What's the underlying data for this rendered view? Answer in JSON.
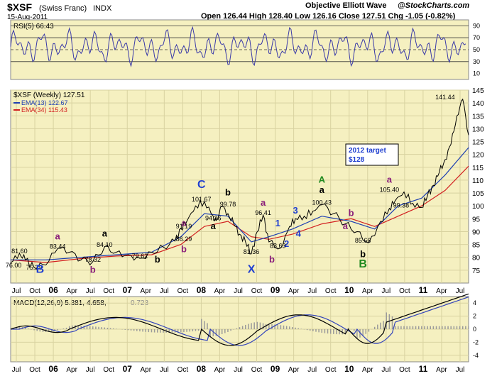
{
  "header": {
    "symbol": "$XSF",
    "name": "(Swiss Franc)",
    "index": "INDX",
    "date": "15-Aug-2011",
    "annotator": "Objective Elliott Wave",
    "source": "@StockCharts.com",
    "quote": "Open 126.44  High 128.40  Low 126.16  Close 127.51  Chg -1.05 (-0.82%)"
  },
  "colors": {
    "panel_bg": "#f5f0c0",
    "price": "#000000",
    "ema13": "#1e3fb2",
    "ema34": "#d22020",
    "rsi": "#3a3aa8",
    "macd": "#000000",
    "macd_signal": "#3344bb",
    "histogram": "#9a9a9a",
    "wave_blue": "#1f3fd0",
    "wave_purple": "#8a1f7a",
    "wave_green": "#1f8a1f",
    "target_text": "#1f3fd0"
  },
  "rsi_panel": {
    "label": "RSI(5) 66.43",
    "levels": [
      30,
      50,
      70,
      90
    ],
    "ticks": [
      "10",
      "30",
      "50",
      "70",
      "90"
    ]
  },
  "price_panel": {
    "legend_main": "$XSF (Weekly) 127.51",
    "legend_ema13": "EMA(13) 122.67",
    "legend_ema34": "EMA(34) 115.43",
    "ticks": [
      "75",
      "80",
      "85",
      "90",
      "95",
      "100",
      "105",
      "110",
      "115",
      "120",
      "125",
      "130",
      "135",
      "140",
      "145"
    ],
    "target_box": [
      "2012 target",
      "$128"
    ]
  },
  "macd_panel": {
    "label_main": "MACD(12,26,9) 5.381, 4.658,",
    "label_hist": "0.723",
    "ticks": [
      "-4",
      "-2",
      "0",
      "2",
      "4"
    ]
  },
  "x_axis": {
    "labels": [
      "Jul",
      "Oct",
      "06",
      "Apr",
      "Jul",
      "Oct",
      "07",
      "Apr",
      "Jul",
      "Oct",
      "08",
      "Apr",
      "Jul",
      "Oct",
      "09",
      "Apr",
      "Jul",
      "Oct",
      "10",
      "Apr",
      "Jul",
      "Oct",
      "11",
      "Apr",
      "Jul"
    ]
  },
  "chart_data": {
    "type": "line",
    "title": "$XSF (Swiss Franc) INDX",
    "x_axis_labels": [
      "Jul",
      "Oct",
      "06",
      "Apr",
      "Jul",
      "Oct",
      "07",
      "Apr",
      "Jul",
      "Oct",
      "08",
      "Apr",
      "Jul",
      "Oct",
      "09",
      "Apr",
      "Jul",
      "Oct",
      "10",
      "Apr",
      "Jul",
      "Oct",
      "11",
      "Apr",
      "Jul"
    ],
    "ylim": [
      70,
      145
    ],
    "series": [
      {
        "name": "$XSF (Weekly) 127.51",
        "x": [
          0,
          6,
          10,
          16,
          24,
          32,
          40,
          48,
          56,
          64,
          72,
          80,
          88,
          96,
          104,
          112,
          116,
          120,
          126,
          132,
          138,
          140,
          144,
          148,
          152,
          156,
          160,
          164,
          168,
          172,
          176,
          184,
          190,
          194,
          200,
          206,
          212,
          220,
          228,
          236,
          244,
          252,
          258,
          262,
          268,
          274,
          280,
          284,
          288,
          292,
          296,
          300,
          304,
          308,
          312
        ],
        "y": [
          78,
          81.6,
          79,
          76,
          77,
          83.44,
          82,
          79,
          78.32,
          84.1,
          82,
          81,
          79.62,
          82,
          84,
          86.29,
          91.19,
          94,
          100,
          101.67,
          96,
          94.36,
          99.78,
          97,
          93,
          89,
          86,
          81.36,
          90,
          96.41,
          86,
          83.63,
          92,
          95,
          96,
          98,
          100.43,
          97,
          93,
          90,
          85.66,
          94,
          99,
          102,
          105.4,
          101,
          99.38,
          104,
          108,
          113,
          118,
          124,
          135,
          141.44,
          127.51
        ]
      },
      {
        "name": "EMA(13) 122.67",
        "x": [
          0,
          24,
          48,
          72,
          96,
          116,
          132,
          148,
          164,
          176,
          192,
          212,
          232,
          248,
          264,
          280,
          296,
          312
        ],
        "y": [
          79,
          79,
          80,
          81,
          82,
          88,
          97,
          96,
          86,
          88,
          91,
          96,
          94,
          91,
          100,
          103,
          112,
          122.67
        ]
      },
      {
        "name": "EMA(34) 115.43",
        "x": [
          0,
          24,
          48,
          72,
          96,
          116,
          132,
          148,
          164,
          176,
          192,
          212,
          232,
          248,
          264,
          280,
          296,
          312
        ],
        "y": [
          79,
          78,
          79.5,
          80.5,
          81,
          85,
          92,
          94,
          88,
          87,
          89,
          93,
          95,
          92,
          96,
          100,
          106,
          115.43
        ]
      }
    ],
    "annotations": [
      {
        "text": "76.00",
        "x": 2,
        "y": 76.0
      },
      {
        "text": "81.60",
        "x": 6,
        "y": 81.6
      },
      {
        "text": "75.29",
        "x": 16,
        "y": 75.29
      },
      {
        "text": "B",
        "x": 20,
        "y": 74,
        "color": "wave_blue"
      },
      {
        "text": "a",
        "x": 32,
        "y": 87,
        "color": "wave_purple"
      },
      {
        "text": "83.44",
        "x": 32,
        "y": 83.44
      },
      {
        "text": "78.32",
        "x": 56,
        "y": 78.32
      },
      {
        "text": "b",
        "x": 56,
        "y": 74,
        "color": "wave_purple"
      },
      {
        "text": "a",
        "x": 64,
        "y": 88
      },
      {
        "text": "84.10",
        "x": 64,
        "y": 84.1
      },
      {
        "text": "79.62",
        "x": 88,
        "y": 79.62
      },
      {
        "text": "b",
        "x": 100,
        "y": 78
      },
      {
        "text": "a",
        "x": 118,
        "y": 92,
        "color": "wave_purple"
      },
      {
        "text": "91.19",
        "x": 118,
        "y": 91.19
      },
      {
        "text": "86.29",
        "x": 118,
        "y": 86.29
      },
      {
        "text": "b",
        "x": 118,
        "y": 82,
        "color": "wave_purple"
      },
      {
        "text": "C",
        "x": 130,
        "y": 107,
        "color": "wave_blue"
      },
      {
        "text": "101.67",
        "x": 130,
        "y": 101.67
      },
      {
        "text": "94.36",
        "x": 138,
        "y": 94.36
      },
      {
        "text": "a",
        "x": 138,
        "y": 91
      },
      {
        "text": "b",
        "x": 148,
        "y": 104
      },
      {
        "text": "99.78",
        "x": 148,
        "y": 99.78
      },
      {
        "text": "X",
        "x": 164,
        "y": 74,
        "color": "wave_blue"
      },
      {
        "text": "81.36",
        "x": 164,
        "y": 81.36
      },
      {
        "text": "a",
        "x": 172,
        "y": 100,
        "color": "wave_purple"
      },
      {
        "text": "96.41",
        "x": 172,
        "y": 96.41
      },
      {
        "text": "1",
        "x": 182,
        "y": 92,
        "color": "wave_blue"
      },
      {
        "text": "2",
        "x": 188,
        "y": 84,
        "color": "wave_blue"
      },
      {
        "text": "b",
        "x": 178,
        "y": 78,
        "color": "wave_purple"
      },
      {
        "text": "83.63",
        "x": 182,
        "y": 83.63
      },
      {
        "text": "3",
        "x": 194,
        "y": 97,
        "color": "wave_blue"
      },
      {
        "text": "4",
        "x": 196,
        "y": 88,
        "color": "wave_blue"
      },
      {
        "text": "A",
        "x": 212,
        "y": 109,
        "color": "wave_green"
      },
      {
        "text": "a",
        "x": 212,
        "y": 105
      },
      {
        "text": "100.43",
        "x": 212,
        "y": 100.43
      },
      {
        "text": "b",
        "x": 232,
        "y": 96,
        "color": "wave_purple"
      },
      {
        "text": "a",
        "x": 228,
        "y": 91,
        "color": "wave_purple"
      },
      {
        "text": "85.66",
        "x": 240,
        "y": 85.66
      },
      {
        "text": "b",
        "x": 240,
        "y": 80
      },
      {
        "text": "B",
        "x": 240,
        "y": 76,
        "color": "wave_green"
      },
      {
        "text": "a",
        "x": 258,
        "y": 109,
        "color": "wave_purple"
      },
      {
        "text": "105.40",
        "x": 258,
        "y": 105.4
      },
      {
        "text": "99.38",
        "x": 266,
        "y": 99.38
      },
      {
        "text": "141.44",
        "x": 296,
        "y": 141.44
      },
      {
        "text": "2012 target $128",
        "x": 238,
        "y": 125
      }
    ]
  }
}
